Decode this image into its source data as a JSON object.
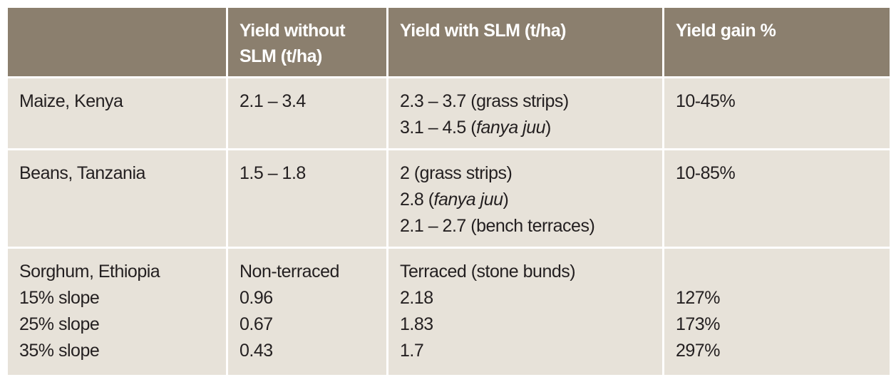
{
  "table": {
    "header": [
      "Yield without SLM (t/ha)",
      "Yield with SLM (t/ha)",
      "Yield gain %"
    ],
    "rows": [
      [
        [
          "Maize, Kenya"
        ],
        [
          "2.1 – 3.4"
        ],
        [
          "2.3 – 3.7 (grass strips)",
          [
            {
              "text": "3.1 – 4.5 ("
            },
            {
              "text": "fanya juu",
              "italic": true
            },
            {
              "text": ")"
            }
          ]
        ],
        [
          "10-45%"
        ]
      ],
      [
        [
          "Beans, Tanzania"
        ],
        [
          "1.5 – 1.8"
        ],
        [
          "2 (grass strips)",
          [
            {
              "text": "2.8 ("
            },
            {
              "text": "fanya juu",
              "italic": true
            },
            {
              "text": ")"
            }
          ],
          "2.1 – 2.7 (bench terraces)"
        ],
        [
          "10-85%"
        ]
      ],
      [
        [
          "Sorghum, Ethiopia",
          "15% slope",
          "25% slope",
          "35% slope"
        ],
        [
          "Non-terraced",
          "0.96",
          "0.67",
          "0.43"
        ],
        [
          "Terraced (stone bunds)",
          "2.18",
          "1.83",
          "1.7"
        ],
        [
          null,
          "127%",
          "173%",
          "297%"
        ]
      ]
    ]
  }
}
